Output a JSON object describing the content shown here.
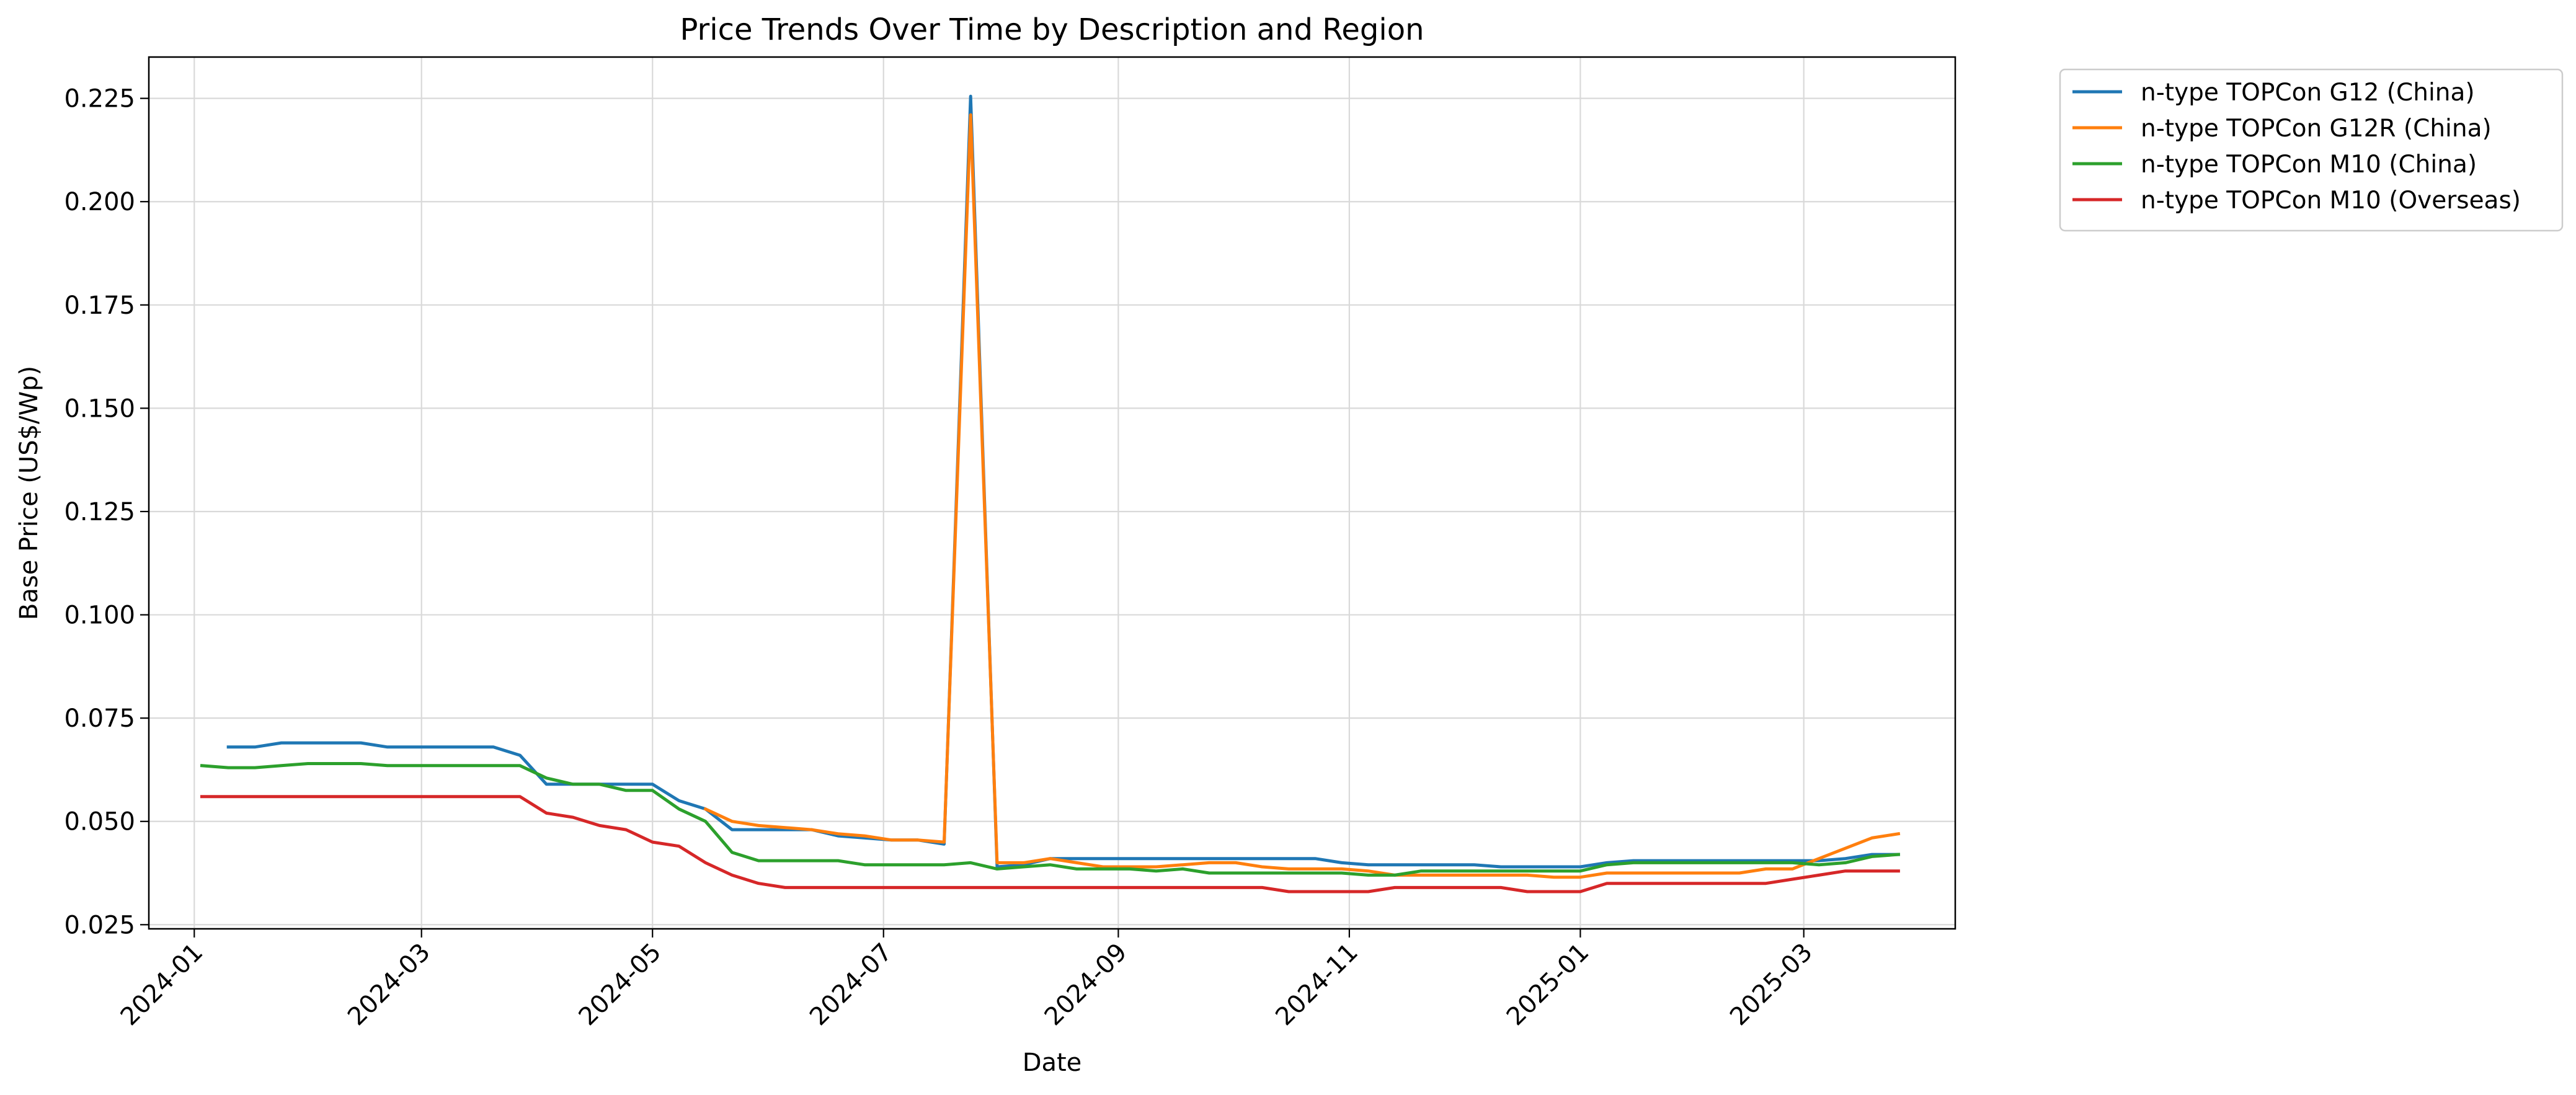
{
  "chart_data": {
    "type": "line",
    "title": "Price Trends Over Time by Description and Region",
    "xlabel": "Date",
    "ylabel": "Base Price (US$/Wp)",
    "x_axis_type": "date",
    "xlim": [
      "2023-12-20",
      "2025-04-10"
    ],
    "ylim": [
      0.024,
      0.235
    ],
    "x_ticks": [
      "2024-01-01",
      "2024-03-01",
      "2024-05-01",
      "2024-07-01",
      "2024-09-01",
      "2024-11-01",
      "2025-01-01",
      "2025-03-01"
    ],
    "x_tick_labels": [
      "2024-01",
      "2024-03",
      "2024-05",
      "2024-07",
      "2024-09",
      "2024-11",
      "2025-01",
      "2025-03"
    ],
    "y_ticks": [
      0.025,
      0.05,
      0.075,
      0.1,
      0.125,
      0.15,
      0.175,
      0.2,
      0.225
    ],
    "y_tick_labels": [
      "0.025",
      "0.050",
      "0.075",
      "0.100",
      "0.125",
      "0.150",
      "0.175",
      "0.200",
      "0.225"
    ],
    "grid": true,
    "legend_position": "outside-top-right",
    "series": [
      {
        "name": "n-type TOPCon G12 (China)",
        "color": "#1f77b4",
        "points": [
          [
            "2024-01-10",
            0.068
          ],
          [
            "2024-01-17",
            0.068
          ],
          [
            "2024-01-24",
            0.069
          ],
          [
            "2024-01-31",
            0.069
          ],
          [
            "2024-02-07",
            0.069
          ],
          [
            "2024-02-14",
            0.069
          ],
          [
            "2024-02-21",
            0.068
          ],
          [
            "2024-02-28",
            0.068
          ],
          [
            "2024-03-06",
            0.068
          ],
          [
            "2024-03-13",
            0.068
          ],
          [
            "2024-03-20",
            0.068
          ],
          [
            "2024-03-27",
            0.066
          ],
          [
            "2024-04-03",
            0.059
          ],
          [
            "2024-04-10",
            0.059
          ],
          [
            "2024-04-17",
            0.059
          ],
          [
            "2024-04-24",
            0.059
          ],
          [
            "2024-05-01",
            0.059
          ],
          [
            "2024-05-08",
            0.055
          ],
          [
            "2024-05-15",
            0.053
          ],
          [
            "2024-05-22",
            0.048
          ],
          [
            "2024-05-29",
            0.048
          ],
          [
            "2024-06-05",
            0.048
          ],
          [
            "2024-06-12",
            0.048
          ],
          [
            "2024-06-19",
            0.0465
          ],
          [
            "2024-06-26",
            0.046
          ],
          [
            "2024-07-03",
            0.0455
          ],
          [
            "2024-07-10",
            0.0455
          ],
          [
            "2024-07-17",
            0.0445
          ],
          [
            "2024-07-24",
            0.2255
          ],
          [
            "2024-07-31",
            0.039
          ],
          [
            "2024-08-07",
            0.0395
          ],
          [
            "2024-08-14",
            0.041
          ],
          [
            "2024-08-21",
            0.041
          ],
          [
            "2024-08-28",
            0.041
          ],
          [
            "2024-09-04",
            0.041
          ],
          [
            "2024-09-11",
            0.041
          ],
          [
            "2024-09-18",
            0.041
          ],
          [
            "2024-09-25",
            0.041
          ],
          [
            "2024-10-02",
            0.041
          ],
          [
            "2024-10-09",
            0.041
          ],
          [
            "2024-10-16",
            0.041
          ],
          [
            "2024-10-23",
            0.041
          ],
          [
            "2024-10-30",
            0.04
          ],
          [
            "2024-11-06",
            0.0395
          ],
          [
            "2024-11-13",
            0.0395
          ],
          [
            "2024-11-20",
            0.0395
          ],
          [
            "2024-11-27",
            0.0395
          ],
          [
            "2024-12-04",
            0.0395
          ],
          [
            "2024-12-11",
            0.039
          ],
          [
            "2024-12-18",
            0.039
          ],
          [
            "2024-12-25",
            0.039
          ],
          [
            "2025-01-01",
            0.039
          ],
          [
            "2025-01-08",
            0.04
          ],
          [
            "2025-01-15",
            0.0405
          ],
          [
            "2025-01-22",
            0.0405
          ],
          [
            "2025-01-29",
            0.0405
          ],
          [
            "2025-02-05",
            0.0405
          ],
          [
            "2025-02-12",
            0.0405
          ],
          [
            "2025-02-19",
            0.0405
          ],
          [
            "2025-02-26",
            0.0405
          ],
          [
            "2025-03-05",
            0.0405
          ],
          [
            "2025-03-12",
            0.041
          ],
          [
            "2025-03-19",
            0.042
          ],
          [
            "2025-03-26",
            0.042
          ]
        ]
      },
      {
        "name": "n-type TOPCon G12R (China)",
        "color": "#ff7f0e",
        "points": [
          [
            "2024-05-15",
            0.053
          ],
          [
            "2024-05-22",
            0.05
          ],
          [
            "2024-05-29",
            0.049
          ],
          [
            "2024-06-05",
            0.0485
          ],
          [
            "2024-06-12",
            0.048
          ],
          [
            "2024-06-19",
            0.047
          ],
          [
            "2024-06-26",
            0.0465
          ],
          [
            "2024-07-03",
            0.0455
          ],
          [
            "2024-07-10",
            0.0455
          ],
          [
            "2024-07-17",
            0.045
          ],
          [
            "2024-07-24",
            0.221
          ],
          [
            "2024-07-31",
            0.04
          ],
          [
            "2024-08-07",
            0.04
          ],
          [
            "2024-08-14",
            0.041
          ],
          [
            "2024-08-21",
            0.04
          ],
          [
            "2024-08-28",
            0.039
          ],
          [
            "2024-09-04",
            0.039
          ],
          [
            "2024-09-11",
            0.039
          ],
          [
            "2024-09-18",
            0.0395
          ],
          [
            "2024-09-25",
            0.04
          ],
          [
            "2024-10-02",
            0.04
          ],
          [
            "2024-10-09",
            0.039
          ],
          [
            "2024-10-16",
            0.0385
          ],
          [
            "2024-10-23",
            0.0385
          ],
          [
            "2024-10-30",
            0.0385
          ],
          [
            "2024-11-06",
            0.038
          ],
          [
            "2024-11-13",
            0.037
          ],
          [
            "2024-11-20",
            0.037
          ],
          [
            "2024-11-27",
            0.037
          ],
          [
            "2024-12-04",
            0.037
          ],
          [
            "2024-12-11",
            0.037
          ],
          [
            "2024-12-18",
            0.037
          ],
          [
            "2024-12-25",
            0.0365
          ],
          [
            "2025-01-01",
            0.0365
          ],
          [
            "2025-01-08",
            0.0375
          ],
          [
            "2025-01-15",
            0.0375
          ],
          [
            "2025-01-22",
            0.0375
          ],
          [
            "2025-01-29",
            0.0375
          ],
          [
            "2025-02-05",
            0.0375
          ],
          [
            "2025-02-12",
            0.0375
          ],
          [
            "2025-02-19",
            0.0385
          ],
          [
            "2025-02-26",
            0.0385
          ],
          [
            "2025-03-05",
            0.041
          ],
          [
            "2025-03-12",
            0.0435
          ],
          [
            "2025-03-19",
            0.046
          ],
          [
            "2025-03-26",
            0.047
          ]
        ]
      },
      {
        "name": "n-type TOPCon M10 (China)",
        "color": "#2ca02c",
        "points": [
          [
            "2024-01-03",
            0.0635
          ],
          [
            "2024-01-10",
            0.063
          ],
          [
            "2024-01-17",
            0.063
          ],
          [
            "2024-01-24",
            0.0635
          ],
          [
            "2024-01-31",
            0.064
          ],
          [
            "2024-02-07",
            0.064
          ],
          [
            "2024-02-14",
            0.064
          ],
          [
            "2024-02-21",
            0.0635
          ],
          [
            "2024-02-28",
            0.0635
          ],
          [
            "2024-03-06",
            0.0635
          ],
          [
            "2024-03-13",
            0.0635
          ],
          [
            "2024-03-20",
            0.0635
          ],
          [
            "2024-03-27",
            0.0635
          ],
          [
            "2024-04-03",
            0.0605
          ],
          [
            "2024-04-10",
            0.059
          ],
          [
            "2024-04-17",
            0.059
          ],
          [
            "2024-04-24",
            0.0575
          ],
          [
            "2024-05-01",
            0.0575
          ],
          [
            "2024-05-08",
            0.053
          ],
          [
            "2024-05-15",
            0.05
          ],
          [
            "2024-05-22",
            0.0425
          ],
          [
            "2024-05-29",
            0.0405
          ],
          [
            "2024-06-05",
            0.0405
          ],
          [
            "2024-06-12",
            0.0405
          ],
          [
            "2024-06-19",
            0.0405
          ],
          [
            "2024-06-26",
            0.0395
          ],
          [
            "2024-07-03",
            0.0395
          ],
          [
            "2024-07-10",
            0.0395
          ],
          [
            "2024-07-17",
            0.0395
          ],
          [
            "2024-07-24",
            0.04
          ],
          [
            "2024-07-31",
            0.0385
          ],
          [
            "2024-08-07",
            0.039
          ],
          [
            "2024-08-14",
            0.0395
          ],
          [
            "2024-08-21",
            0.0385
          ],
          [
            "2024-08-28",
            0.0385
          ],
          [
            "2024-09-04",
            0.0385
          ],
          [
            "2024-09-11",
            0.038
          ],
          [
            "2024-09-18",
            0.0385
          ],
          [
            "2024-09-25",
            0.0375
          ],
          [
            "2024-10-02",
            0.0375
          ],
          [
            "2024-10-09",
            0.0375
          ],
          [
            "2024-10-16",
            0.0375
          ],
          [
            "2024-10-23",
            0.0375
          ],
          [
            "2024-10-30",
            0.0375
          ],
          [
            "2024-11-06",
            0.037
          ],
          [
            "2024-11-13",
            0.037
          ],
          [
            "2024-11-20",
            0.038
          ],
          [
            "2024-11-27",
            0.038
          ],
          [
            "2024-12-04",
            0.038
          ],
          [
            "2024-12-11",
            0.038
          ],
          [
            "2024-12-18",
            0.038
          ],
          [
            "2024-12-25",
            0.038
          ],
          [
            "2025-01-01",
            0.038
          ],
          [
            "2025-01-08",
            0.0395
          ],
          [
            "2025-01-15",
            0.04
          ],
          [
            "2025-01-22",
            0.04
          ],
          [
            "2025-01-29",
            0.04
          ],
          [
            "2025-02-05",
            0.04
          ],
          [
            "2025-02-12",
            0.04
          ],
          [
            "2025-02-19",
            0.04
          ],
          [
            "2025-02-26",
            0.04
          ],
          [
            "2025-03-05",
            0.0395
          ],
          [
            "2025-03-12",
            0.04
          ],
          [
            "2025-03-19",
            0.0415
          ],
          [
            "2025-03-26",
            0.042
          ]
        ]
      },
      {
        "name": "n-type TOPCon M10 (Overseas)",
        "color": "#d62728",
        "points": [
          [
            "2024-01-03",
            0.056
          ],
          [
            "2024-01-10",
            0.056
          ],
          [
            "2024-01-17",
            0.056
          ],
          [
            "2024-01-24",
            0.056
          ],
          [
            "2024-01-31",
            0.056
          ],
          [
            "2024-02-07",
            0.056
          ],
          [
            "2024-02-14",
            0.056
          ],
          [
            "2024-02-21",
            0.056
          ],
          [
            "2024-02-28",
            0.056
          ],
          [
            "2024-03-06",
            0.056
          ],
          [
            "2024-03-13",
            0.056
          ],
          [
            "2024-03-20",
            0.056
          ],
          [
            "2024-03-27",
            0.056
          ],
          [
            "2024-04-03",
            0.052
          ],
          [
            "2024-04-10",
            0.051
          ],
          [
            "2024-04-17",
            0.049
          ],
          [
            "2024-04-24",
            0.048
          ],
          [
            "2024-05-01",
            0.045
          ],
          [
            "2024-05-08",
            0.044
          ],
          [
            "2024-05-15",
            0.04
          ],
          [
            "2024-05-22",
            0.037
          ],
          [
            "2024-05-29",
            0.035
          ],
          [
            "2024-06-05",
            0.034
          ],
          [
            "2024-06-12",
            0.034
          ],
          [
            "2024-06-19",
            0.034
          ],
          [
            "2024-06-26",
            0.034
          ],
          [
            "2024-07-03",
            0.034
          ],
          [
            "2024-07-10",
            0.034
          ],
          [
            "2024-07-17",
            0.034
          ],
          [
            "2024-07-24",
            0.034
          ],
          [
            "2024-07-31",
            0.034
          ],
          [
            "2024-08-07",
            0.034
          ],
          [
            "2024-08-14",
            0.034
          ],
          [
            "2024-08-21",
            0.034
          ],
          [
            "2024-08-28",
            0.034
          ],
          [
            "2024-09-04",
            0.034
          ],
          [
            "2024-09-11",
            0.034
          ],
          [
            "2024-09-18",
            0.034
          ],
          [
            "2024-09-25",
            0.034
          ],
          [
            "2024-10-02",
            0.034
          ],
          [
            "2024-10-09",
            0.034
          ],
          [
            "2024-10-16",
            0.033
          ],
          [
            "2024-10-23",
            0.033
          ],
          [
            "2024-10-30",
            0.033
          ],
          [
            "2024-11-06",
            0.033
          ],
          [
            "2024-11-13",
            0.034
          ],
          [
            "2024-11-20",
            0.034
          ],
          [
            "2024-11-27",
            0.034
          ],
          [
            "2024-12-04",
            0.034
          ],
          [
            "2024-12-11",
            0.034
          ],
          [
            "2024-12-18",
            0.033
          ],
          [
            "2024-12-25",
            0.033
          ],
          [
            "2025-01-01",
            0.033
          ],
          [
            "2025-01-08",
            0.035
          ],
          [
            "2025-01-15",
            0.035
          ],
          [
            "2025-01-22",
            0.035
          ],
          [
            "2025-01-29",
            0.035
          ],
          [
            "2025-02-05",
            0.035
          ],
          [
            "2025-02-12",
            0.035
          ],
          [
            "2025-02-19",
            0.035
          ],
          [
            "2025-02-26",
            0.036
          ],
          [
            "2025-03-05",
            0.037
          ],
          [
            "2025-03-12",
            0.038
          ],
          [
            "2025-03-19",
            0.038
          ],
          [
            "2025-03-26",
            0.038
          ]
        ]
      }
    ]
  }
}
